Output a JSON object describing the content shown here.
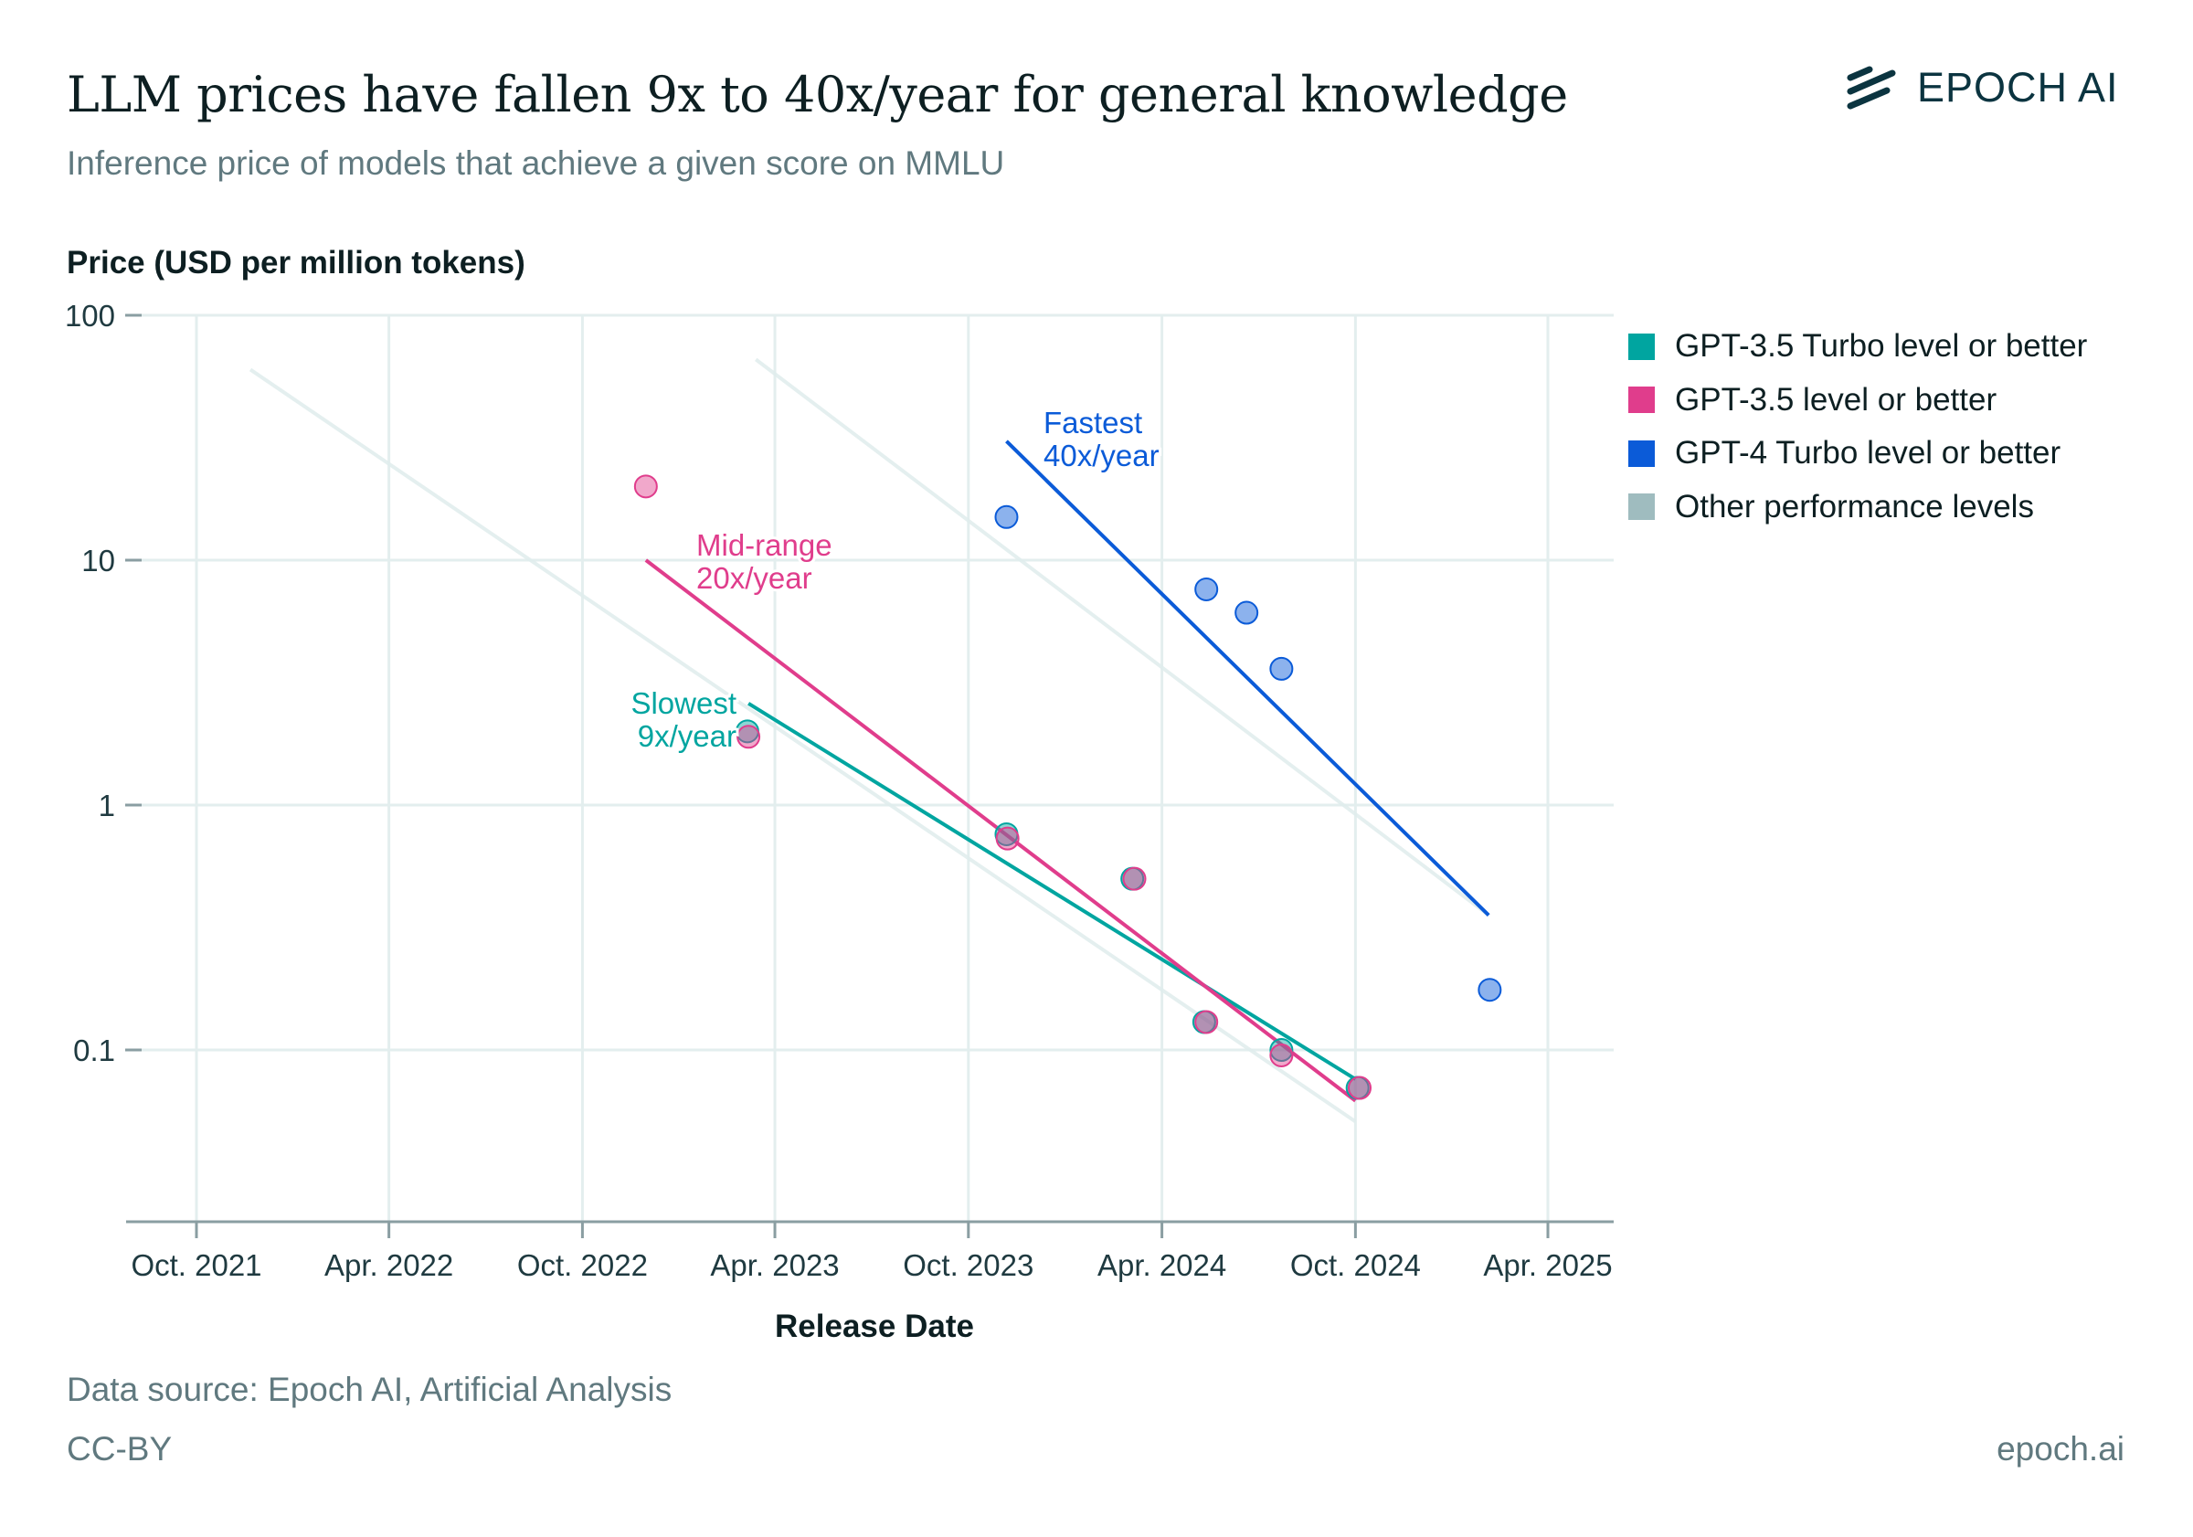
{
  "header": {
    "title": "LLM prices have fallen 9x to 40x/year for general knowledge",
    "subtitle": "Inference price of models that achieve a given score on MMLU",
    "logo_text": "EPOCH AI"
  },
  "footer": {
    "source": "Data source: Epoch AI, Artificial Analysis",
    "license": "CC-BY",
    "site": "epoch.ai"
  },
  "colors": {
    "teal": "#00a5a0",
    "pink": "#e03d8c",
    "blue": "#0b5bd8",
    "gray": "#9fbcbf",
    "grid": "#e3eeee",
    "axis": "#8a9ea2",
    "text": "#0d1f22"
  },
  "chart_data": {
    "type": "scatter",
    "title": "LLM prices have fallen 9x to 40x/year for general knowledge",
    "subtitle": "Inference price of models that achieve a given score on MMLU",
    "xlabel": "Release Date",
    "ylabel": "Price (USD per million tokens)",
    "yscale": "log",
    "ylim": [
      0.02,
      100
    ],
    "xlim": [
      "2021-08-01",
      "2025-05-01"
    ],
    "grid": true,
    "legend_position": "right",
    "y_ticks": [
      {
        "value": 100,
        "label": "100"
      },
      {
        "value": 10,
        "label": "10"
      },
      {
        "value": 1,
        "label": "1"
      },
      {
        "value": 0.1,
        "label": "0.1"
      }
    ],
    "x_ticks": [
      {
        "date": "2021-10-01",
        "label": "Oct. 2021"
      },
      {
        "date": "2022-04-01",
        "label": "Apr. 2022"
      },
      {
        "date": "2022-10-01",
        "label": "Oct. 2022"
      },
      {
        "date": "2023-04-01",
        "label": "Apr. 2023"
      },
      {
        "date": "2023-10-01",
        "label": "Oct. 2023"
      },
      {
        "date": "2024-04-01",
        "label": "Apr. 2024"
      },
      {
        "date": "2024-10-01",
        "label": "Oct. 2024"
      },
      {
        "date": "2025-04-01",
        "label": "Apr. 2025"
      }
    ],
    "series": [
      {
        "name": "GPT-3.5 Turbo level or better",
        "color": "#00a5a0",
        "points": [
          {
            "date": "2023-03-06",
            "price": 2.0
          },
          {
            "date": "2023-11-06",
            "price": 0.76
          },
          {
            "date": "2024-03-04",
            "price": 0.5
          },
          {
            "date": "2024-05-11",
            "price": 0.13
          },
          {
            "date": "2024-07-23",
            "price": 0.1
          },
          {
            "date": "2024-10-03",
            "price": 0.07
          }
        ]
      },
      {
        "name": "GPT-3.5 level or better",
        "color": "#e03d8c",
        "points": [
          {
            "date": "2022-11-30",
            "price": 20
          },
          {
            "date": "2023-03-07",
            "price": 1.9
          },
          {
            "date": "2023-11-07",
            "price": 0.73
          },
          {
            "date": "2024-03-06",
            "price": 0.5
          },
          {
            "date": "2024-05-13",
            "price": 0.13
          },
          {
            "date": "2024-07-23",
            "price": 0.095
          },
          {
            "date": "2024-10-05",
            "price": 0.07
          }
        ]
      },
      {
        "name": "GPT-4 Turbo level or better",
        "color": "#0b5bd8",
        "points": [
          {
            "date": "2023-11-06",
            "price": 15
          },
          {
            "date": "2024-05-13",
            "price": 7.6
          },
          {
            "date": "2024-06-20",
            "price": 6.1
          },
          {
            "date": "2024-07-23",
            "price": 3.6
          },
          {
            "date": "2025-02-05",
            "price": 0.176
          }
        ]
      },
      {
        "name": "Other performance levels",
        "color": "#9fbcbf",
        "points": []
      }
    ],
    "trend_lines": [
      {
        "name": "other-trend-1",
        "series": "Other performance levels",
        "start": {
          "date": "2021-11-21",
          "price": 60
        },
        "end": {
          "date": "2024-10-01",
          "price": 0.051
        }
      },
      {
        "name": "other-trend-2",
        "series": "Other performance levels",
        "start": {
          "date": "2023-03-14",
          "price": 66
        },
        "end": {
          "date": "2025-02-04",
          "price": 0.355
        }
      },
      {
        "name": "slowest-trend",
        "series": "GPT-3.5 Turbo level or better",
        "start": {
          "date": "2023-03-07",
          "price": 2.6
        },
        "end": {
          "date": "2024-10-01",
          "price": 0.076
        }
      },
      {
        "name": "mid-range-trend",
        "series": "GPT-3.5 level or better",
        "start": {
          "date": "2022-11-30",
          "price": 10
        },
        "end": {
          "date": "2024-10-01",
          "price": 0.062
        }
      },
      {
        "name": "fastest-trend",
        "series": "GPT-4 Turbo level or better",
        "start": {
          "date": "2023-11-06",
          "price": 30.6
        },
        "end": {
          "date": "2025-02-04",
          "price": 0.355
        }
      }
    ],
    "annotations": [
      {
        "name": "fastest-label",
        "lines": [
          "Fastest",
          "40x/year"
        ],
        "color": "#0b5bd8"
      },
      {
        "name": "mid-range-label",
        "lines": [
          "Mid-range",
          "20x/year"
        ],
        "color": "#e03d8c"
      },
      {
        "name": "slowest-label",
        "lines": [
          "Slowest",
          "9x/year"
        ],
        "color": "#00a5a0"
      }
    ]
  }
}
